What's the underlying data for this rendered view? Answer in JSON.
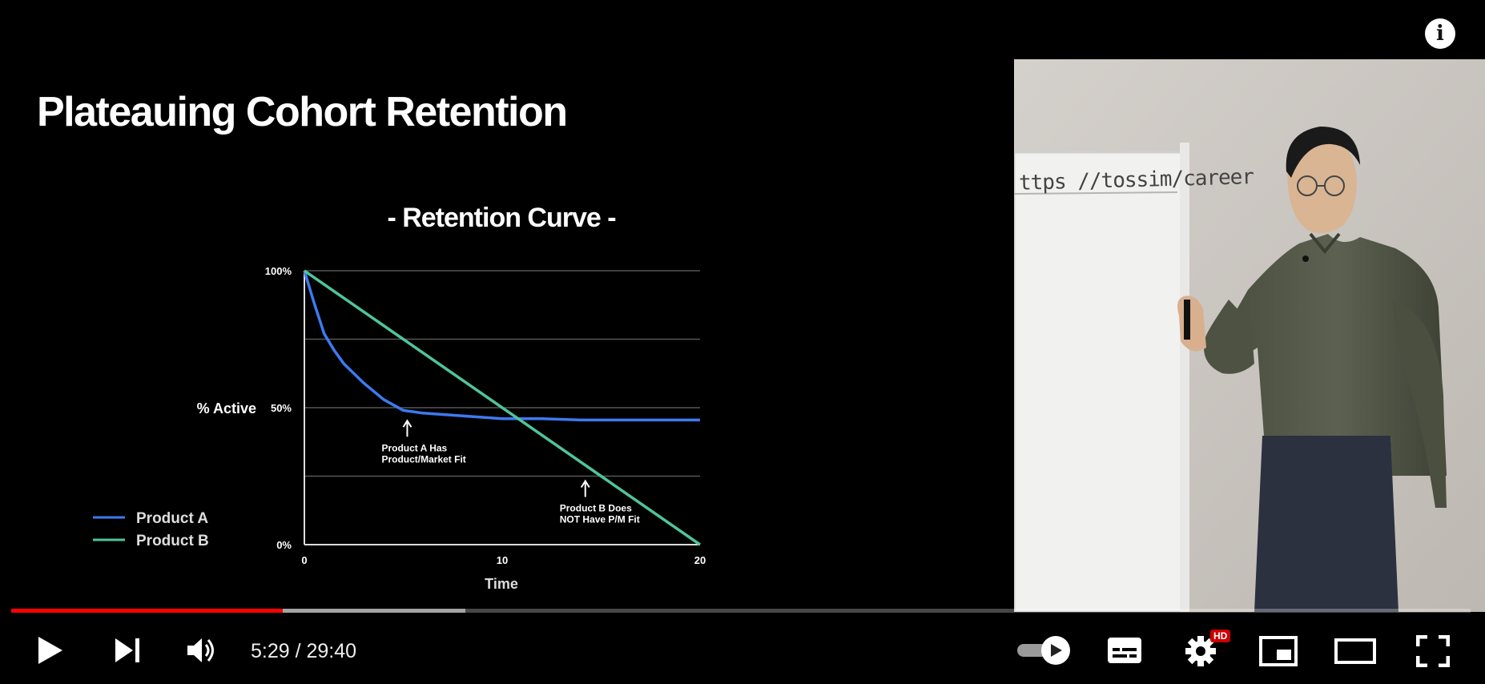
{
  "slide": {
    "title": "Plateauing Cohort Retention",
    "chart_title": "- Retention Curve -"
  },
  "chart_data": {
    "type": "line",
    "title": "- Retention Curve -",
    "xlabel": "Time",
    "ylabel": "% Active",
    "xlim": [
      0,
      20
    ],
    "ylim": [
      0,
      100
    ],
    "x_ticks": [
      "0",
      "10",
      "20"
    ],
    "y_ticks": [
      "0%",
      "50%",
      "100%"
    ],
    "grid": true,
    "legend_position": "bottom-left",
    "series": [
      {
        "name": "Product A",
        "color": "#3d7af0",
        "x": [
          0,
          0.5,
          1,
          1.5,
          2,
          3,
          4,
          5,
          6,
          8,
          10,
          12,
          14,
          16,
          18,
          20
        ],
        "y": [
          100,
          88,
          77,
          71,
          66,
          59,
          53,
          49,
          48,
          47,
          46,
          46,
          45.5,
          45.5,
          45.5,
          45.5
        ]
      },
      {
        "name": "Product B",
        "color": "#4fc49a",
        "x": [
          0,
          5,
          10,
          15,
          20
        ],
        "y": [
          100,
          75,
          50,
          25,
          0
        ]
      }
    ],
    "annotations": [
      {
        "x": 5.2,
        "y": 47,
        "lines": [
          "Product A Has",
          "Product/Market Fit"
        ]
      },
      {
        "x": 14.2,
        "y": 25,
        "lines": [
          "Product B Does",
          "NOT Have P/M Fit"
        ]
      }
    ]
  },
  "camera": {
    "whiteboard_text": "ttps //tossim/career"
  },
  "player": {
    "current_time": "5:29",
    "duration": "29:40",
    "time_display": "5:29 / 29:40",
    "played_fraction": 0.186,
    "loaded_fraction": 0.311,
    "hd_badge": "HD",
    "accent_color": "#ff0000",
    "buttons": {
      "play": "play-icon",
      "next": "next-icon",
      "volume": "volume-icon",
      "autoplay": "autoplay-toggle",
      "subtitles": "subtitles-icon",
      "settings": "gear-icon",
      "miniplayer": "miniplayer-icon",
      "theater": "theater-icon",
      "fullscreen": "fullscreen-icon",
      "info": "info-icon"
    }
  }
}
